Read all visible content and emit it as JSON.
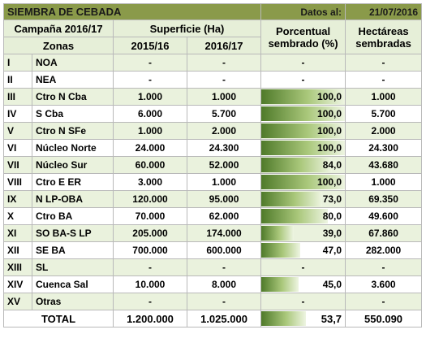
{
  "title": "SIEMBRA DE CEBADA",
  "date_label": "Datos al:",
  "date_value": "21/07/2016",
  "header": {
    "campaign": "Campaña 2016/17",
    "surface": "Superficie (Ha)",
    "percent": "Porcentual sembrado (%)",
    "percent_l1": "Porcentual",
    "percent_l2": "sembrado (%)",
    "hectares": "Hectáreas sembradas",
    "hectares_l1": "Hectáreas",
    "hectares_l2": "sembradas",
    "zones": "Zonas",
    "y1": "2015/16",
    "y2": "2016/17"
  },
  "rows": [
    {
      "num": "I",
      "zone": "NOA",
      "s1516": "-",
      "s1617": "-",
      "pct": "-",
      "pct_value": 0,
      "ha": "-"
    },
    {
      "num": "II",
      "zone": "NEA",
      "s1516": "-",
      "s1617": "-",
      "pct": "-",
      "pct_value": 0,
      "ha": "-"
    },
    {
      "num": "III",
      "zone": "Ctro N Cba",
      "s1516": "1.000",
      "s1617": "1.000",
      "pct": "100,0",
      "pct_value": 100,
      "ha": "1.000"
    },
    {
      "num": "IV",
      "zone": "S Cba",
      "s1516": "6.000",
      "s1617": "5.700",
      "pct": "100,0",
      "pct_value": 100,
      "ha": "5.700"
    },
    {
      "num": "V",
      "zone": "Ctro N SFe",
      "s1516": "1.000",
      "s1617": "2.000",
      "pct": "100,0",
      "pct_value": 100,
      "ha": "2.000"
    },
    {
      "num": "VI",
      "zone": "Núcleo Norte",
      "s1516": "24.000",
      "s1617": "24.300",
      "pct": "100,0",
      "pct_value": 100,
      "ha": "24.300"
    },
    {
      "num": "VII",
      "zone": "Núcleo Sur",
      "s1516": "60.000",
      "s1617": "52.000",
      "pct": "84,0",
      "pct_value": 84,
      "ha": "43.680"
    },
    {
      "num": "VIII",
      "zone": "Ctro E ER",
      "s1516": "3.000",
      "s1617": "1.000",
      "pct": "100,0",
      "pct_value": 100,
      "ha": "1.000"
    },
    {
      "num": "IX",
      "zone": "N LP-OBA",
      "s1516": "120.000",
      "s1617": "95.000",
      "pct": "73,0",
      "pct_value": 73,
      "ha": "69.350"
    },
    {
      "num": "X",
      "zone": "Ctro BA",
      "s1516": "70.000",
      "s1617": "62.000",
      "pct": "80,0",
      "pct_value": 80,
      "ha": "49.600"
    },
    {
      "num": "XI",
      "zone": "SO BA-S LP",
      "s1516": "205.000",
      "s1617": "174.000",
      "pct": "39,0",
      "pct_value": 39,
      "ha": "67.860"
    },
    {
      "num": "XII",
      "zone": "SE BA",
      "s1516": "700.000",
      "s1617": "600.000",
      "pct": "47,0",
      "pct_value": 47,
      "ha": "282.000"
    },
    {
      "num": "XIII",
      "zone": "SL",
      "s1516": "-",
      "s1617": "-",
      "pct": "-",
      "pct_value": 0,
      "ha": "-"
    },
    {
      "num": "XIV",
      "zone": "Cuenca Sal",
      "s1516": "10.000",
      "s1617": "8.000",
      "pct": "45,0",
      "pct_value": 45,
      "ha": "3.600"
    },
    {
      "num": "XV",
      "zone": "Otras",
      "s1516": "-",
      "s1617": "-",
      "pct": "-",
      "pct_value": 0,
      "ha": "-"
    }
  ],
  "total": {
    "label": "TOTAL",
    "s1516": "1.200.000",
    "s1617": "1.025.000",
    "pct": "53,7",
    "pct_value": 53.7,
    "ha": "550.090"
  },
  "colors": {
    "title_bg": "#8a9a4a",
    "header_bg": "#e6efd8",
    "band_bg": "#eaf2dd",
    "bar_dark": "#4f7a2a"
  }
}
